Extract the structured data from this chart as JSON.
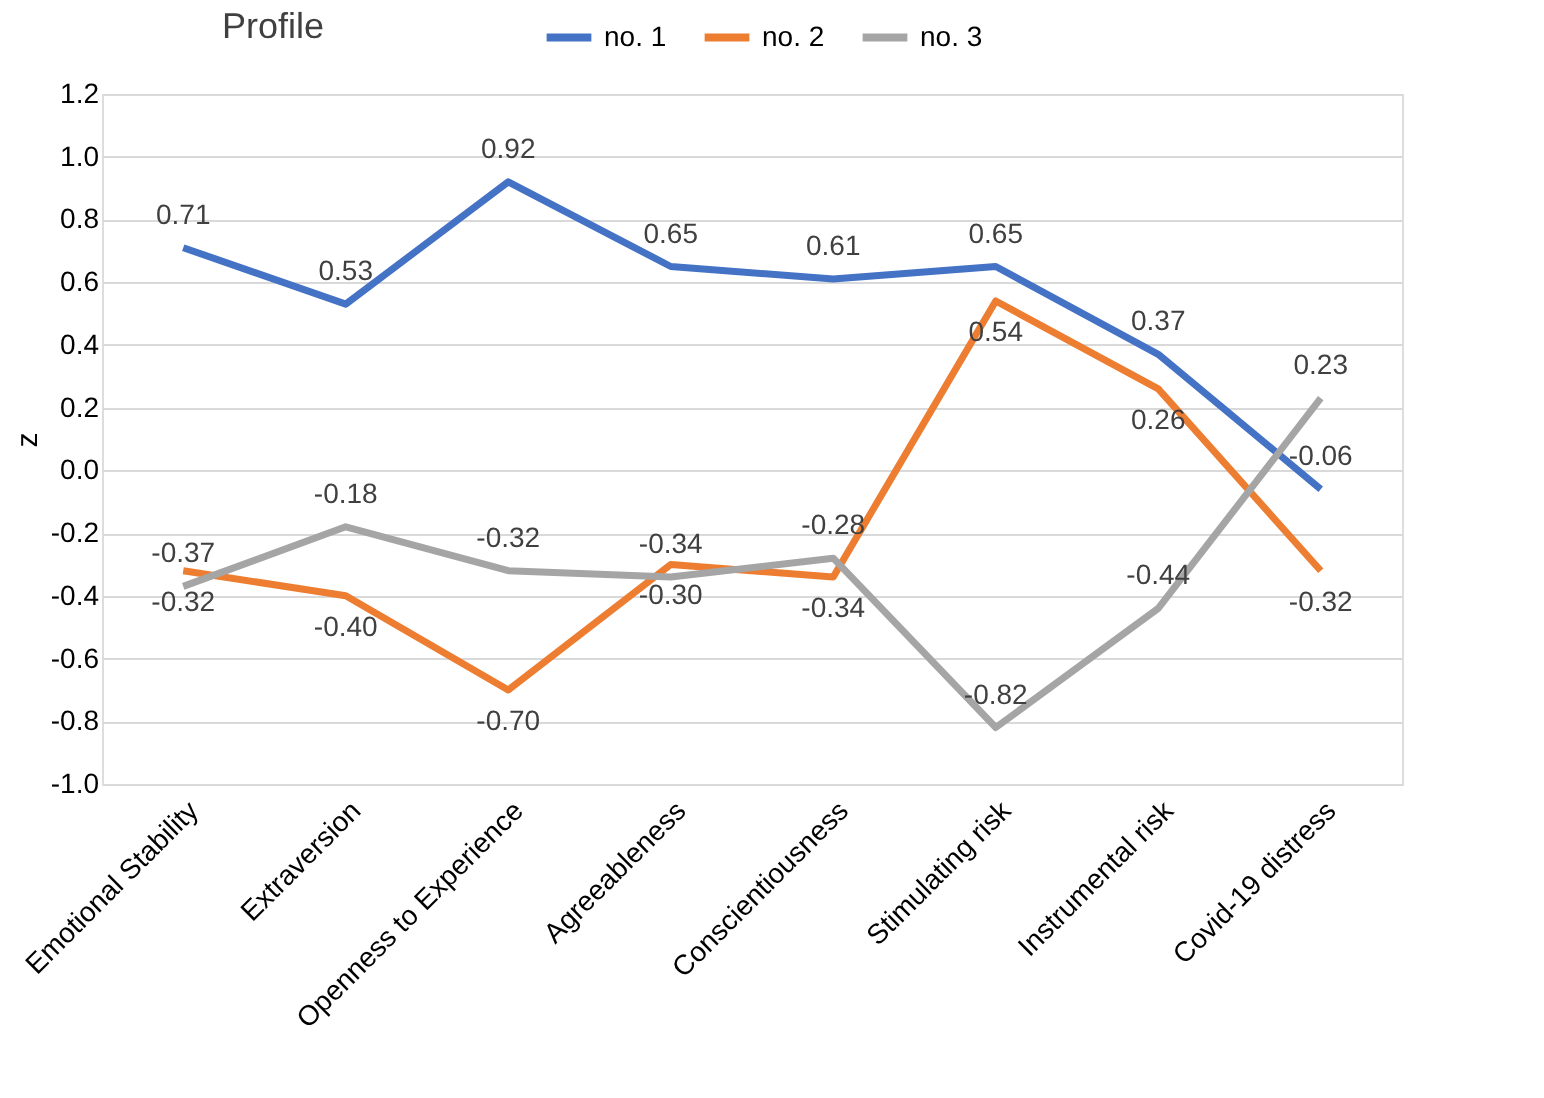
{
  "chart_data": {
    "type": "line",
    "title": "Profile",
    "ylabel": "z",
    "categories": [
      "Emotional Stability",
      "Extraversion",
      "Openness to Experience",
      "Agreeableness",
      "Conscientiousness",
      "Stimulating risk",
      "Instrumental risk",
      "Covid-19 distress"
    ],
    "series": [
      {
        "name": "no. 1",
        "color": "#4472c4",
        "values": [
          0.71,
          0.53,
          0.92,
          0.65,
          0.61,
          0.65,
          0.37,
          -0.06
        ],
        "value_labels": [
          "0.71",
          "0.53",
          "0.92",
          "0.65",
          "0.61",
          "0.65",
          "0.37",
          "-0.06"
        ]
      },
      {
        "name": "no. 2",
        "color": "#ed7d31",
        "values": [
          -0.32,
          -0.4,
          -0.7,
          -0.3,
          -0.34,
          0.54,
          0.26,
          -0.32
        ],
        "value_labels": [
          "-0.32",
          "-0.40",
          "-0.70",
          "-0.30",
          "-0.34",
          "0.54",
          "0.26",
          "-0.32"
        ]
      },
      {
        "name": "no. 3",
        "color": "#a5a5a5",
        "values": [
          -0.37,
          -0.18,
          -0.32,
          -0.34,
          -0.28,
          -0.82,
          -0.44,
          0.23
        ],
        "value_labels": [
          "-0.37",
          "-0.18",
          "-0.32",
          "-0.34",
          "-0.28",
          "-0.82",
          "-0.44",
          "0.23"
        ]
      }
    ],
    "ylim": [
      -1.0,
      1.2
    ],
    "yticks": [
      {
        "value": -1.0,
        "label": "-1.0"
      },
      {
        "value": -0.8,
        "label": "-0.8"
      },
      {
        "value": -0.6,
        "label": "-0.6"
      },
      {
        "value": -0.4,
        "label": "-0.4"
      },
      {
        "value": -0.2,
        "label": "-0.2"
      },
      {
        "value": 0.0,
        "label": "0.0"
      },
      {
        "value": 0.2,
        "label": "0.2"
      },
      {
        "value": 0.4,
        "label": "0.4"
      },
      {
        "value": 0.6,
        "label": "0.6"
      },
      {
        "value": 0.8,
        "label": "0.8"
      },
      {
        "value": 1.0,
        "label": "1.0"
      },
      {
        "value": 1.2,
        "label": "1.2"
      }
    ],
    "grid": "y",
    "legend": "top",
    "marker": "none",
    "line_style": "solid"
  }
}
